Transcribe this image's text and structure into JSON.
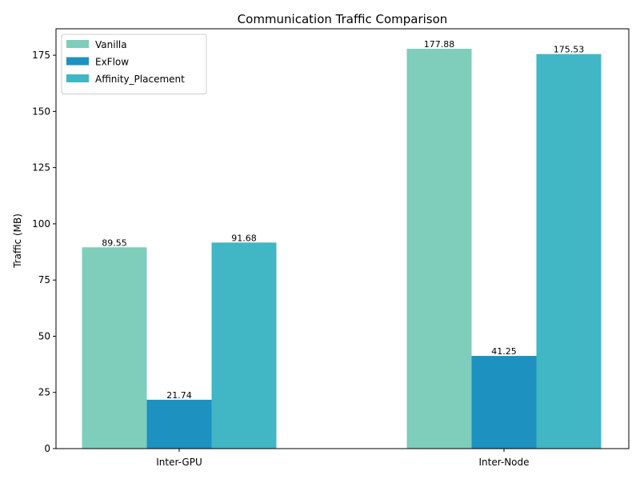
{
  "chart_data": {
    "type": "bar",
    "title": "Communication Traffic Comparison",
    "xlabel": "",
    "ylabel": "Traffic (MB)",
    "categories": [
      "Inter-GPU",
      "Inter-Node"
    ],
    "series": [
      {
        "name": "Vanilla",
        "values": [
          89.55,
          177.88
        ],
        "color": "#7fcdbb",
        "labels": [
          "89.55",
          "177.88"
        ]
      },
      {
        "name": "ExFlow",
        "values": [
          21.74,
          41.25
        ],
        "color": "#1d91c0",
        "labels": [
          "21.74",
          "41.25"
        ]
      },
      {
        "name": "Affinity_Placement",
        "values": [
          91.68,
          175.53
        ],
        "color": "#41b6c4",
        "labels": [
          "91.68",
          "175.53"
        ]
      }
    ],
    "ylim": [
      0,
      186.77
    ],
    "yticks": [
      0,
      25,
      50,
      75,
      100,
      125,
      150,
      175
    ],
    "grid": false,
    "legend_position": "top-left"
  }
}
